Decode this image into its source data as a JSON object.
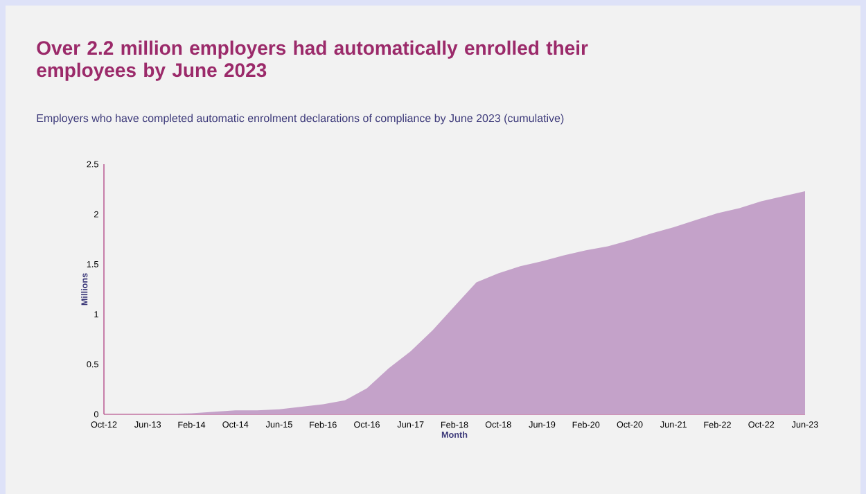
{
  "chart_data": {
    "type": "area",
    "title": "Over 2.2 million employers had automatically enrolled their employees by June 2023",
    "subtitle": "Employers who have completed automatic enrolment declarations of compliance by June 2023 (cumulative)",
    "xlabel": "Month",
    "ylabel": "Millions",
    "x": [
      "2012-10",
      "2013-06",
      "2014-02",
      "2014-10",
      "2015-02",
      "2015-06",
      "2016-02",
      "2016-06",
      "2016-10",
      "2017-02",
      "2017-06",
      "2017-10",
      "2018-02",
      "2018-06",
      "2018-10",
      "2019-02",
      "2019-06",
      "2019-10",
      "2020-02",
      "2020-06",
      "2020-10",
      "2021-02",
      "2021-06",
      "2021-10",
      "2022-02",
      "2022-06",
      "2022-10",
      "2023-02",
      "2023-06"
    ],
    "values": [
      0,
      0,
      0.01,
      0.04,
      0.04,
      0.05,
      0.1,
      0.14,
      0.26,
      0.46,
      0.63,
      0.84,
      1.08,
      1.32,
      1.41,
      1.48,
      1.53,
      1.59,
      1.64,
      1.68,
      1.74,
      1.81,
      1.87,
      1.94,
      2.01,
      2.06,
      2.13,
      2.18,
      2.23
    ],
    "color": "#c4a2c9",
    "xlim": [
      "2012-10",
      "2023-06"
    ],
    "xticks": [
      {
        "value": "2012-10",
        "label": "Oct-12"
      },
      {
        "value": "2013-06",
        "label": "Jun-13"
      },
      {
        "value": "2014-02",
        "label": "Feb-14"
      },
      {
        "value": "2014-10",
        "label": "Oct-14"
      },
      {
        "value": "2015-06",
        "label": "Jun-15"
      },
      {
        "value": "2016-02",
        "label": "Feb-16"
      },
      {
        "value": "2016-10",
        "label": "Oct-16"
      },
      {
        "value": "2017-06",
        "label": "Jun-17"
      },
      {
        "value": "2018-02",
        "label": "Feb-18"
      },
      {
        "value": "2018-10",
        "label": "Oct-18"
      },
      {
        "value": "2019-06",
        "label": "Jun-19"
      },
      {
        "value": "2020-02",
        "label": "Feb-20"
      },
      {
        "value": "2020-10",
        "label": "Oct-20"
      },
      {
        "value": "2021-06",
        "label": "Jun-21"
      },
      {
        "value": "2022-02",
        "label": "Feb-22"
      },
      {
        "value": "2022-10",
        "label": "Oct-22"
      },
      {
        "value": "2023-06",
        "label": "Jun-23"
      }
    ],
    "ylim": [
      0,
      2.5
    ],
    "yticks": [
      0,
      0.5,
      1,
      1.5,
      2,
      2.5
    ],
    "grid": false
  }
}
